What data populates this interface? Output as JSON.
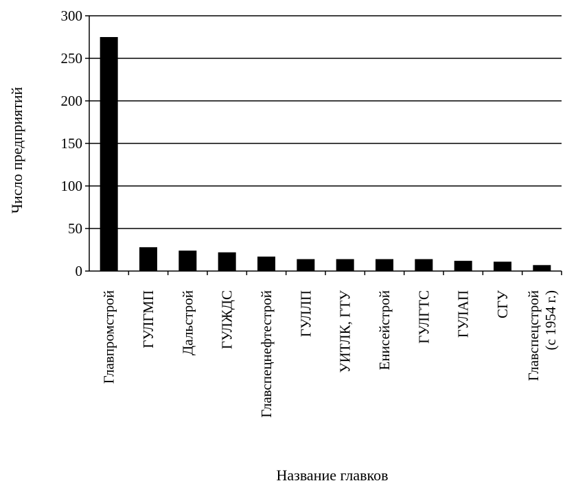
{
  "chart_data": {
    "type": "bar",
    "title": "",
    "xlabel": "Название главков",
    "ylabel": "Число предприятий",
    "ylim": [
      0,
      300
    ],
    "yticks": [
      0,
      50,
      100,
      150,
      200,
      250,
      300
    ],
    "grid": true,
    "legend": "none",
    "bar_color": "#000000",
    "categories": [
      [
        "Главпромстрой"
      ],
      [
        "ГУЛГМП"
      ],
      [
        "Дальстрой"
      ],
      [
        "ГУЛЖДС"
      ],
      [
        "Главспецнефтестрой"
      ],
      [
        "ГУЛЛП"
      ],
      [
        "УИТЛК, ГТУ"
      ],
      [
        "Енисейстрой"
      ],
      [
        "ГУЛГТС"
      ],
      [
        "ГУЛАП"
      ],
      [
        "СГУ"
      ],
      [
        "Главспецстрой",
        "(с 1954 г.)"
      ]
    ],
    "values": [
      275,
      28,
      24,
      22,
      17,
      14,
      14,
      14,
      14,
      12,
      11,
      7
    ]
  }
}
